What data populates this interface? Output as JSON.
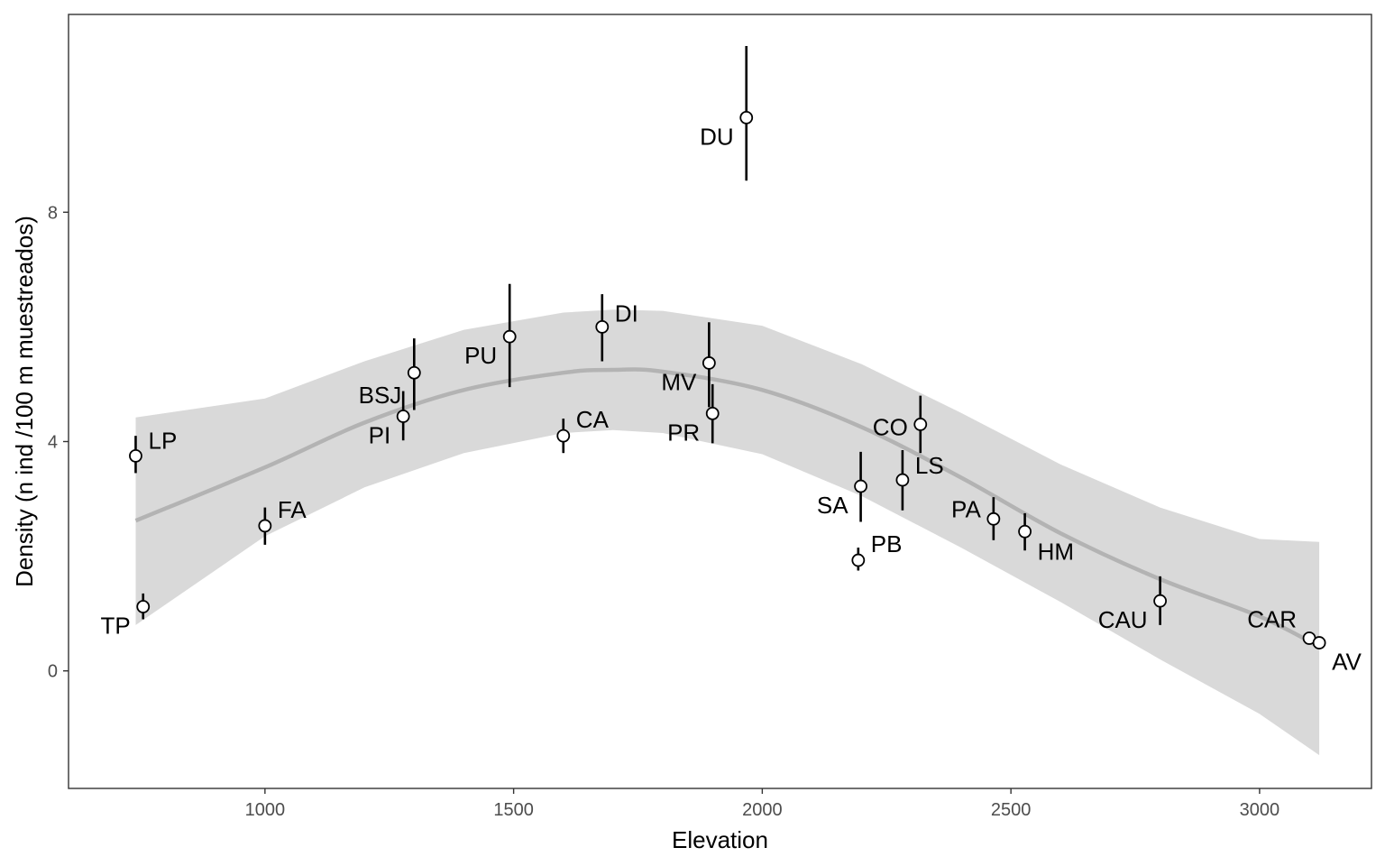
{
  "chart_data": {
    "type": "scatter",
    "title": "",
    "xlabel": "Elevation",
    "ylabel": "Density (n ind /100 m muestreados)",
    "xlim": [
      605,
      3225
    ],
    "ylim": [
      -2.05,
      11.45
    ],
    "xticks": [
      "1000",
      "1500",
      "2000",
      "2500",
      "3000"
    ],
    "yticks": [
      "0",
      "4",
      "8"
    ],
    "grid": false,
    "colors": {
      "errorbar": "#000000",
      "point_fill": "#ffffff",
      "point_stroke": "#000000",
      "smooth_line": "#b3b3b3",
      "ribbon": "#d9d9d9",
      "panel_border": "#333333"
    },
    "points": [
      {
        "label": "LP",
        "x": 740,
        "y": 3.75,
        "ymin": 3.45,
        "ymax": 4.1,
        "label_side": "right"
      },
      {
        "label": "TP",
        "x": 755,
        "y": 1.12,
        "ymin": 0.9,
        "ymax": 1.35,
        "label_side": "below-left"
      },
      {
        "label": "FA",
        "x": 1000,
        "y": 2.53,
        "ymin": 2.2,
        "ymax": 2.85,
        "label_side": "right"
      },
      {
        "label": "PI",
        "x": 1278,
        "y": 4.44,
        "ymin": 4.02,
        "ymax": 4.88,
        "label_side": "left"
      },
      {
        "label": "BSJ",
        "x": 1300,
        "y": 5.2,
        "ymin": 4.55,
        "ymax": 5.8,
        "label_side": "left"
      },
      {
        "label": "PU",
        "x": 1492,
        "y": 5.83,
        "ymin": 4.95,
        "ymax": 6.75,
        "label_side": "left"
      },
      {
        "label": "CA",
        "x": 1600,
        "y": 4.1,
        "ymin": 3.8,
        "ymax": 4.4,
        "label_side": "right"
      },
      {
        "label": "DI",
        "x": 1678,
        "y": 6.0,
        "ymin": 5.4,
        "ymax": 6.57,
        "label_side": "right"
      },
      {
        "label": "MV",
        "x": 1893,
        "y": 5.37,
        "ymin": 4.6,
        "ymax": 6.08,
        "label_side": "left"
      },
      {
        "label": "PR",
        "x": 1900,
        "y": 4.49,
        "ymin": 3.97,
        "ymax": 5.0,
        "label_side": "left"
      },
      {
        "label": "DU",
        "x": 1968,
        "y": 9.65,
        "ymin": 8.55,
        "ymax": 10.9,
        "label_side": "left"
      },
      {
        "label": "PB",
        "x": 2193,
        "y": 1.93,
        "ymin": 1.75,
        "ymax": 2.15,
        "label_side": "right"
      },
      {
        "label": "SA",
        "x": 2198,
        "y": 3.22,
        "ymin": 2.6,
        "ymax": 3.82,
        "label_side": "left"
      },
      {
        "label": "LS",
        "x": 2282,
        "y": 3.33,
        "ymin": 2.8,
        "ymax": 3.85,
        "label_side": "right"
      },
      {
        "label": "CO",
        "x": 2318,
        "y": 4.3,
        "ymin": 3.8,
        "ymax": 4.8,
        "label_side": "left"
      },
      {
        "label": "PA",
        "x": 2465,
        "y": 2.65,
        "ymin": 2.28,
        "ymax": 3.03,
        "label_side": "left"
      },
      {
        "label": "HM",
        "x": 2528,
        "y": 2.43,
        "ymin": 2.1,
        "ymax": 2.75,
        "label_side": "right"
      },
      {
        "label": "CAU",
        "x": 2800,
        "y": 1.22,
        "ymin": 0.8,
        "ymax": 1.65,
        "label_side": "left"
      },
      {
        "label": "CAR",
        "x": 3100,
        "y": 0.57,
        "ymin": 0.57,
        "ymax": 0.57,
        "label_side": "left"
      },
      {
        "label": "AV",
        "x": 3120,
        "y": 0.49,
        "ymin": 0.49,
        "ymax": 0.49,
        "label_side": "below-right"
      }
    ],
    "smooth": {
      "x": [
        740,
        1000,
        1200,
        1400,
        1600,
        1700,
        1800,
        2000,
        2200,
        2400,
        2600,
        2800,
        3000,
        3120
      ],
      "y": [
        2.62,
        3.55,
        4.33,
        4.9,
        5.2,
        5.25,
        5.22,
        4.9,
        4.25,
        3.37,
        2.4,
        1.6,
        0.95,
        0.42
      ],
      "lower": [
        0.8,
        2.35,
        3.2,
        3.8,
        4.15,
        4.2,
        4.15,
        3.78,
        3.05,
        2.15,
        1.2,
        0.2,
        -0.75,
        -1.47
      ],
      "upper": [
        4.42,
        4.75,
        5.4,
        5.95,
        6.25,
        6.3,
        6.28,
        6.02,
        5.35,
        4.5,
        3.6,
        2.85,
        2.3,
        2.25
      ]
    }
  }
}
